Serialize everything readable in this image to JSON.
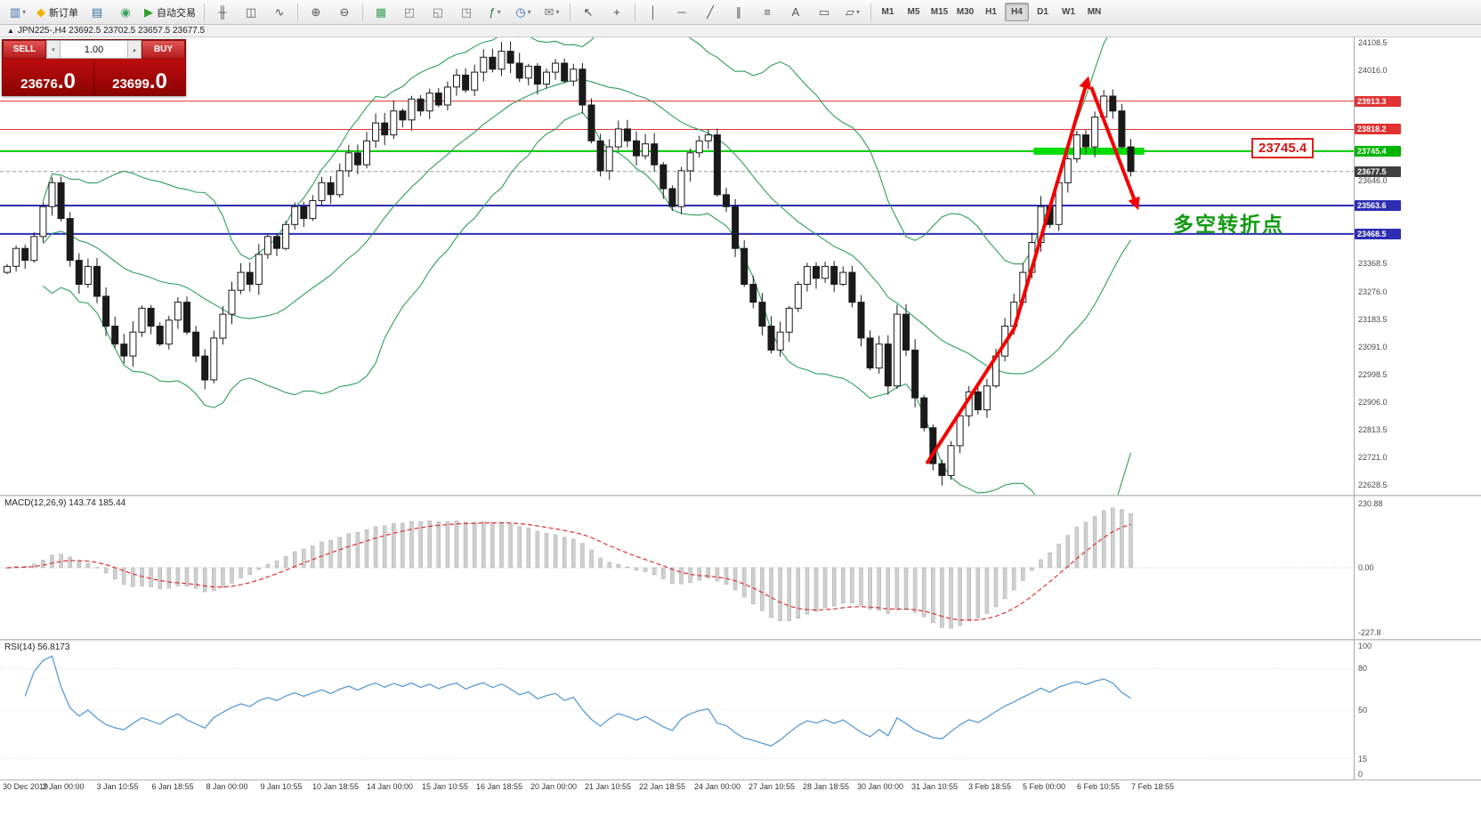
{
  "toolbar": {
    "caret_glyph": "▾",
    "groups": [
      {
        "items": [
          {
            "name": "new-chart-icon",
            "glyph": "▥",
            "color": "#3a6ea5",
            "dropdown": true
          },
          {
            "name": "new-order-button",
            "glyph": "◆",
            "color": "#f0b400",
            "label": "新订单"
          },
          {
            "name": "profiles-icon",
            "glyph": "▤",
            "color": "#3a6ea5"
          },
          {
            "name": "info-icon",
            "glyph": "◉",
            "color": "#3da35d"
          },
          {
            "name": "auto-trading-button",
            "glyph": "▶",
            "color": "#2e9e2e",
            "label": "自动交易"
          }
        ]
      },
      {
        "items": [
          {
            "name": "bar-chart-icon",
            "glyph": "╫",
            "color": "#555555"
          },
          {
            "name": "candlestick-chart-icon",
            "glyph": "◫",
            "color": "#555555"
          },
          {
            "name": "line-chart-icon",
            "glyph": "∿",
            "color": "#555555"
          }
        ]
      },
      {
        "items": [
          {
            "name": "zoom-in-icon",
            "glyph": "⊕",
            "color": "#555555"
          },
          {
            "name": "zoom-out-icon",
            "glyph": "⊖",
            "color": "#555555"
          }
        ]
      },
      {
        "items": [
          {
            "name": "tile-windows-icon",
            "glyph": "▦",
            "color": "#3da35d"
          },
          {
            "name": "cascade-windows-icon",
            "glyph": "◰",
            "color": "#777777"
          },
          {
            "name": "tile-horizontal-icon",
            "glyph": "◱",
            "color": "#777777"
          },
          {
            "name": "tile-vertical-icon",
            "glyph": "◳",
            "color": "#777777"
          },
          {
            "name": "indicators-icon",
            "glyph": "ƒ",
            "color": "#2e7d32",
            "dropdown": true
          },
          {
            "name": "periods-icon",
            "glyph": "◷",
            "color": "#3a6ea5",
            "dropdown": true
          },
          {
            "name": "templates-icon",
            "glyph": "✉",
            "color": "#777777",
            "dropdown": true
          }
        ]
      },
      {
        "items": [
          {
            "name": "cursor-icon",
            "glyph": "↖",
            "color": "#444444"
          },
          {
            "name": "crosshair-icon",
            "glyph": "+",
            "color": "#444444"
          }
        ]
      },
      {
        "items": [
          {
            "name": "vertical-line-icon",
            "glyph": "│",
            "color": "#555555"
          },
          {
            "name": "horizontal-line-icon",
            "glyph": "─",
            "color": "#555555"
          },
          {
            "name": "trendline-icon",
            "glyph": "╱",
            "color": "#555555"
          },
          {
            "name": "channel-icon",
            "glyph": "∥",
            "color": "#555555"
          },
          {
            "name": "fibonacci-icon",
            "glyph": "≡",
            "color": "#555555"
          },
          {
            "name": "text-icon",
            "glyph": "A",
            "color": "#555555"
          },
          {
            "name": "label-icon",
            "glyph": "▭",
            "color": "#555555"
          },
          {
            "name": "shapes-icon",
            "glyph": "▱",
            "color": "#555555",
            "dropdown": true
          }
        ]
      }
    ],
    "timeframes": {
      "items": [
        "M1",
        "M5",
        "M15",
        "M30",
        "H1",
        "H4",
        "D1",
        "W1",
        "MN"
      ],
      "active": "H4"
    }
  },
  "chart_tab": {
    "collapse_glyph": "▲",
    "title": "JPN225-,H4  23692.5 23702.5 23657.5 23677.5"
  },
  "trade_panel": {
    "sell_label": "SELL",
    "buy_label": "BUY",
    "volume": "1.00",
    "spin_down_glyph": "▾",
    "spin_up_glyph": "▴",
    "sell_price_main": "23676",
    "sell_price_frac": ".0",
    "buy_price_main": "23699",
    "buy_price_frac": ".0",
    "panel_color": "#a80808"
  },
  "annotations": {
    "turning_point": {
      "text": "多空转折点",
      "color": "#119a11"
    },
    "price_callout": {
      "text": "23745.4",
      "color": "#d41414"
    },
    "resistance_segment": {
      "price": 23745.4,
      "from_bar": 114.2,
      "to_bar": 126.5,
      "color": "#00dd00"
    },
    "trend_arrows": [
      {
        "dir": "up",
        "color": "#f40000",
        "points": [
          [
            102.3,
            22700
          ],
          [
            112.0,
            23150
          ],
          [
            120.2,
            23985
          ]
        ]
      },
      {
        "dir": "down",
        "color": "#f40000",
        "points": [
          [
            120.6,
            23960
          ],
          [
            125.7,
            23560
          ]
        ]
      }
    ]
  },
  "price_axis": {
    "grid_prices": [
      24108.5,
      24016.0,
      23646.0,
      23368.5,
      23276.0,
      23183.5,
      23091.0,
      22998.5,
      22906.0,
      22813.5,
      22721.0,
      22628.5
    ]
  },
  "hlines": [
    {
      "price": 23913.3,
      "label": "23913.3",
      "line_color": "#e23232",
      "badge_color": "#e23232",
      "width": 1
    },
    {
      "price": 23818.2,
      "label": "23818.2",
      "line_color": "#e23232",
      "badge_color": "#e23232",
      "width": 1
    },
    {
      "price": 23745.4,
      "label": "23745.4",
      "line_color": "#00cc00",
      "badge_color": "#00b400",
      "width": 2
    },
    {
      "price": 23677.5,
      "label": "23677.5",
      "line_color": "#9a9a9a",
      "badge_color": "#3f3f3f",
      "width": 1,
      "dashed": true
    },
    {
      "price": 23563.6,
      "label": "23563.6",
      "line_color": "#2d2db4",
      "badge_color": "#2d2db4",
      "width": 2
    },
    {
      "price": 23468.5,
      "label": "23468.5",
      "line_color": "#2d2db4",
      "badge_color": "#2d2db4",
      "width": 2
    }
  ],
  "time_axis": [
    "30 Dec 2019",
    "2 Jan 00:00",
    "3 Jan 10:55",
    "6 Jan 18:55",
    "8 Jan 00:00",
    "9 Jan 10:55",
    "10 Jan 18:55",
    "14 Jan 00:00",
    "15 Jan 10:55",
    "16 Jan 18:55",
    "20 Jan 00:00",
    "21 Jan 10:55",
    "22 Jan 18:55",
    "24 Jan 00:00",
    "27 Jan 10:55",
    "28 Jan 18:55",
    "30 Jan 00:00",
    "31 Jan 10:55",
    "3 Feb 18:55",
    "5 Feb 00:00",
    "6 Feb 10:55",
    "7 Feb 18:55"
  ],
  "chart_data": [
    {
      "type": "candlestick",
      "title": "JPN225-",
      "timeframe": "H4",
      "ohlc_note": "approximate closes read from chart; open=prev close",
      "open_first": 23340,
      "closes": [
        23360,
        23420,
        23380,
        23460,
        23560,
        23640,
        23520,
        23380,
        23300,
        23360,
        23260,
        23160,
        23100,
        23060,
        23140,
        23220,
        23160,
        23100,
        23180,
        23240,
        23140,
        23060,
        22980,
        23120,
        23200,
        23280,
        23340,
        23300,
        23400,
        23460,
        23420,
        23500,
        23560,
        23520,
        23580,
        23640,
        23600,
        23680,
        23740,
        23700,
        23780,
        23840,
        23800,
        23880,
        23850,
        23920,
        23880,
        23940,
        23900,
        23960,
        24000,
        23950,
        24010,
        24060,
        24020,
        24080,
        24040,
        23990,
        24030,
        23970,
        24010,
        24040,
        23980,
        24020,
        23900,
        23780,
        23680,
        23760,
        23820,
        23780,
        23730,
        23770,
        23700,
        23620,
        23560,
        23680,
        23740,
        23780,
        23800,
        23600,
        23560,
        23420,
        23300,
        23240,
        23160,
        23080,
        23140,
        23220,
        23300,
        23360,
        23320,
        23360,
        23300,
        23340,
        23240,
        23120,
        23020,
        23100,
        22960,
        23200,
        23080,
        22920,
        22820,
        22700,
        22660,
        22760,
        22860,
        22940,
        22880,
        22960,
        23060,
        23160,
        23240,
        23340,
        23440,
        23560,
        23500,
        23640,
        23720,
        23800,
        23760,
        23860,
        23930,
        23880,
        23760,
        23677.5
      ],
      "ylim": [
        22628.5,
        24108.5
      ],
      "grid_step": 92.5,
      "indicators": [
        "Bollinger Bands (20,2)"
      ],
      "band_color": "#2e9e5b",
      "up_color": "#ffffff",
      "down_color": "#1a1a1a"
    },
    {
      "type": "macd",
      "label": "MACD(12,26,9) 143.74 185.44",
      "params": [
        12,
        26,
        9
      ],
      "current_values": [
        143.74,
        185.44
      ],
      "scale_labels": [
        "230.88",
        "0.00",
        "-227.8"
      ],
      "ylim": [
        -227.8,
        230.88
      ],
      "histogram_color": "#cfcfcf",
      "signal_color": "#e03030"
    },
    {
      "type": "rsi",
      "label": "RSI(14) 56.8173",
      "period": 14,
      "current": 56.8173,
      "levels": [
        80,
        50,
        15
      ],
      "scale_labels": [
        "100",
        "80",
        "50",
        "15",
        "0"
      ],
      "ylim": [
        0,
        100
      ],
      "line_color": "#5b9bd5"
    }
  ]
}
